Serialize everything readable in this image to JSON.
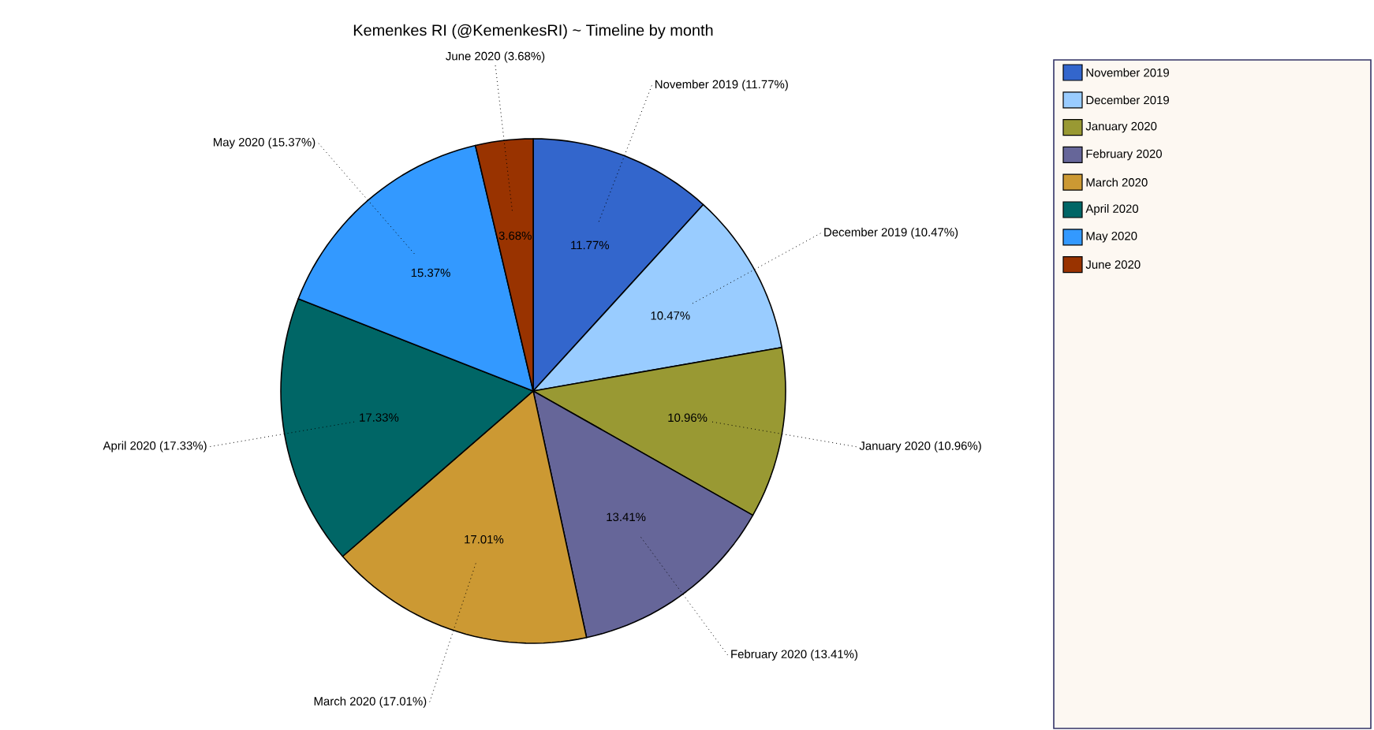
{
  "chart_data": {
    "type": "pie",
    "title": "Kemenkes RI (@KemenkesRI) ~ Timeline by month",
    "categories": [
      "November 2019",
      "December 2019",
      "January 2020",
      "February 2020",
      "March 2020",
      "April 2020",
      "May 2020",
      "June 2020"
    ],
    "values": [
      11.77,
      10.47,
      10.96,
      13.41,
      17.01,
      17.33,
      15.37,
      3.68
    ],
    "value_labels": [
      "11.77%",
      "10.47%",
      "10.96%",
      "13.41%",
      "17.01%",
      "17.33%",
      "15.37%",
      "3.68%"
    ],
    "annotations": [
      "November 2019 (11.77%)",
      "December 2019 (10.47%)",
      "January 2020 (10.96%)",
      "February 2020 (13.41%)",
      "March 2020 (17.01%)",
      "April 2020 (17.33%)",
      "May 2020 (15.37%)",
      "June 2020 (3.68%)"
    ],
    "colors": [
      "#3366cc",
      "#99ccff",
      "#999933",
      "#666699",
      "#cc9933",
      "#006666",
      "#3399ff",
      "#993300"
    ],
    "legend": "right"
  }
}
